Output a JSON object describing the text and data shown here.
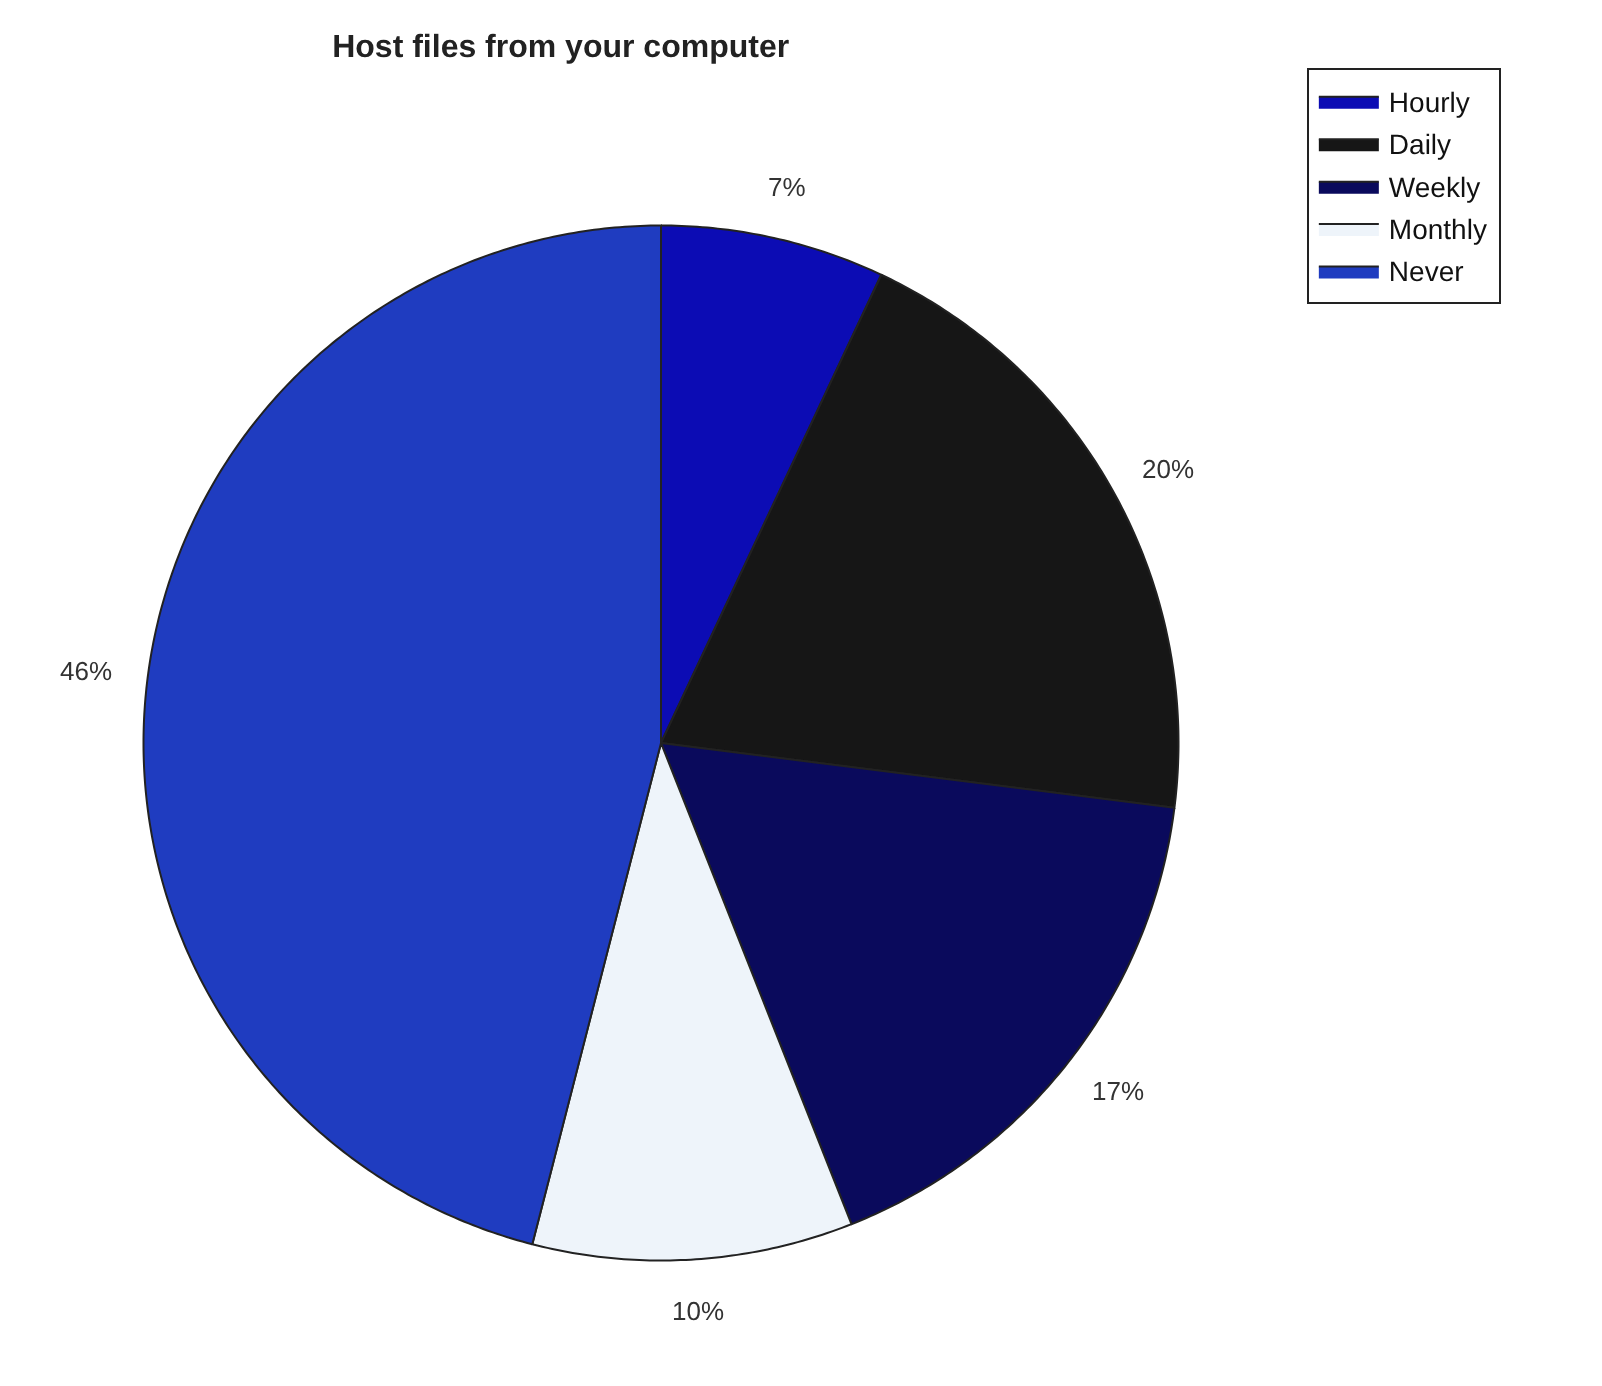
{
  "chart_data": {
    "type": "pie",
    "title": "Host files from your computer",
    "categories": [
      "Hourly",
      "Daily",
      "Weekly",
      "Monthly",
      "Never"
    ],
    "values": [
      7,
      20,
      17,
      10,
      46
    ],
    "value_labels": [
      "7%",
      "20%",
      "17%",
      "10%",
      "46%"
    ],
    "colors": [
      "#0c0cb4",
      "#161616",
      "#0a0a5c",
      "#eef4fa",
      "#1f3cc0"
    ],
    "legend": "top right"
  }
}
